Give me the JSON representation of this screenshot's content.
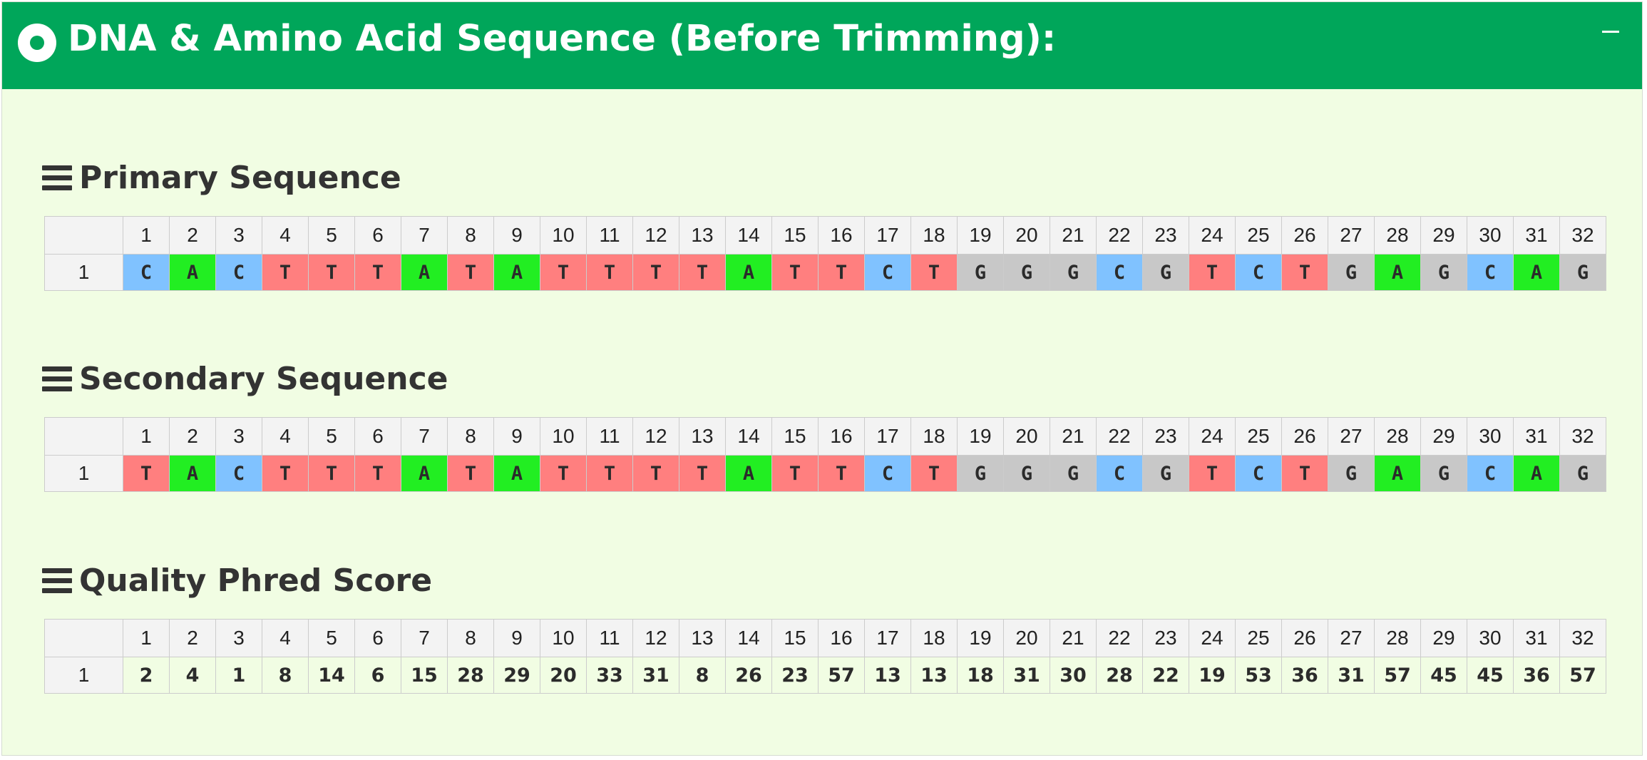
{
  "panel": {
    "title": "DNA & Amino Acid Sequence (Before Trimming):",
    "header_color": "#00a65a",
    "body_color": "#f1fde3"
  },
  "base_colors": {
    "A": "#22ee22",
    "C": "#80c2ff",
    "G": "#c8c8c8",
    "T": "#ff7f7f"
  },
  "columns": [
    "1",
    "2",
    "3",
    "4",
    "5",
    "6",
    "7",
    "8",
    "9",
    "10",
    "11",
    "12",
    "13",
    "14",
    "15",
    "16",
    "17",
    "18",
    "19",
    "20",
    "21",
    "22",
    "23",
    "24",
    "25",
    "26",
    "27",
    "28",
    "29",
    "30",
    "31",
    "32"
  ],
  "sections": [
    {
      "key": "primary",
      "title": "Primary Sequence",
      "row_label": "1",
      "kind": "bases",
      "values": [
        "C",
        "A",
        "C",
        "T",
        "T",
        "T",
        "A",
        "T",
        "A",
        "T",
        "T",
        "T",
        "T",
        "A",
        "T",
        "T",
        "C",
        "T",
        "G",
        "G",
        "G",
        "C",
        "G",
        "T",
        "C",
        "T",
        "G",
        "A",
        "G",
        "C",
        "A",
        "G"
      ]
    },
    {
      "key": "secondary",
      "title": "Secondary Sequence",
      "row_label": "1",
      "kind": "bases",
      "values": [
        "T",
        "A",
        "C",
        "T",
        "T",
        "T",
        "A",
        "T",
        "A",
        "T",
        "T",
        "T",
        "T",
        "A",
        "T",
        "T",
        "C",
        "T",
        "G",
        "G",
        "G",
        "C",
        "G",
        "T",
        "C",
        "T",
        "G",
        "A",
        "G",
        "C",
        "A",
        "G"
      ]
    },
    {
      "key": "quality",
      "title": "Quality Phred Score",
      "row_label": "1",
      "kind": "scores",
      "values": [
        "2",
        "4",
        "1",
        "8",
        "14",
        "6",
        "15",
        "28",
        "29",
        "20",
        "33",
        "31",
        "8",
        "26",
        "23",
        "57",
        "13",
        "13",
        "18",
        "31",
        "30",
        "28",
        "22",
        "19",
        "53",
        "36",
        "31",
        "57",
        "45",
        "45",
        "36",
        "57"
      ]
    }
  ]
}
